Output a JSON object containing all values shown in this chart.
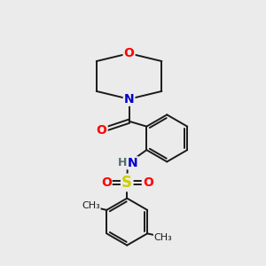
{
  "bg_color": "#ebebeb",
  "bond_color": "#1a1a1a",
  "bond_width": 1.4,
  "atom_colors": {
    "O": "#ff0000",
    "N": "#0000cc",
    "S": "#cccc00",
    "H": "#507070",
    "C": "#1a1a1a"
  },
  "font_size_atom": 10,
  "font_size_methyl": 8
}
